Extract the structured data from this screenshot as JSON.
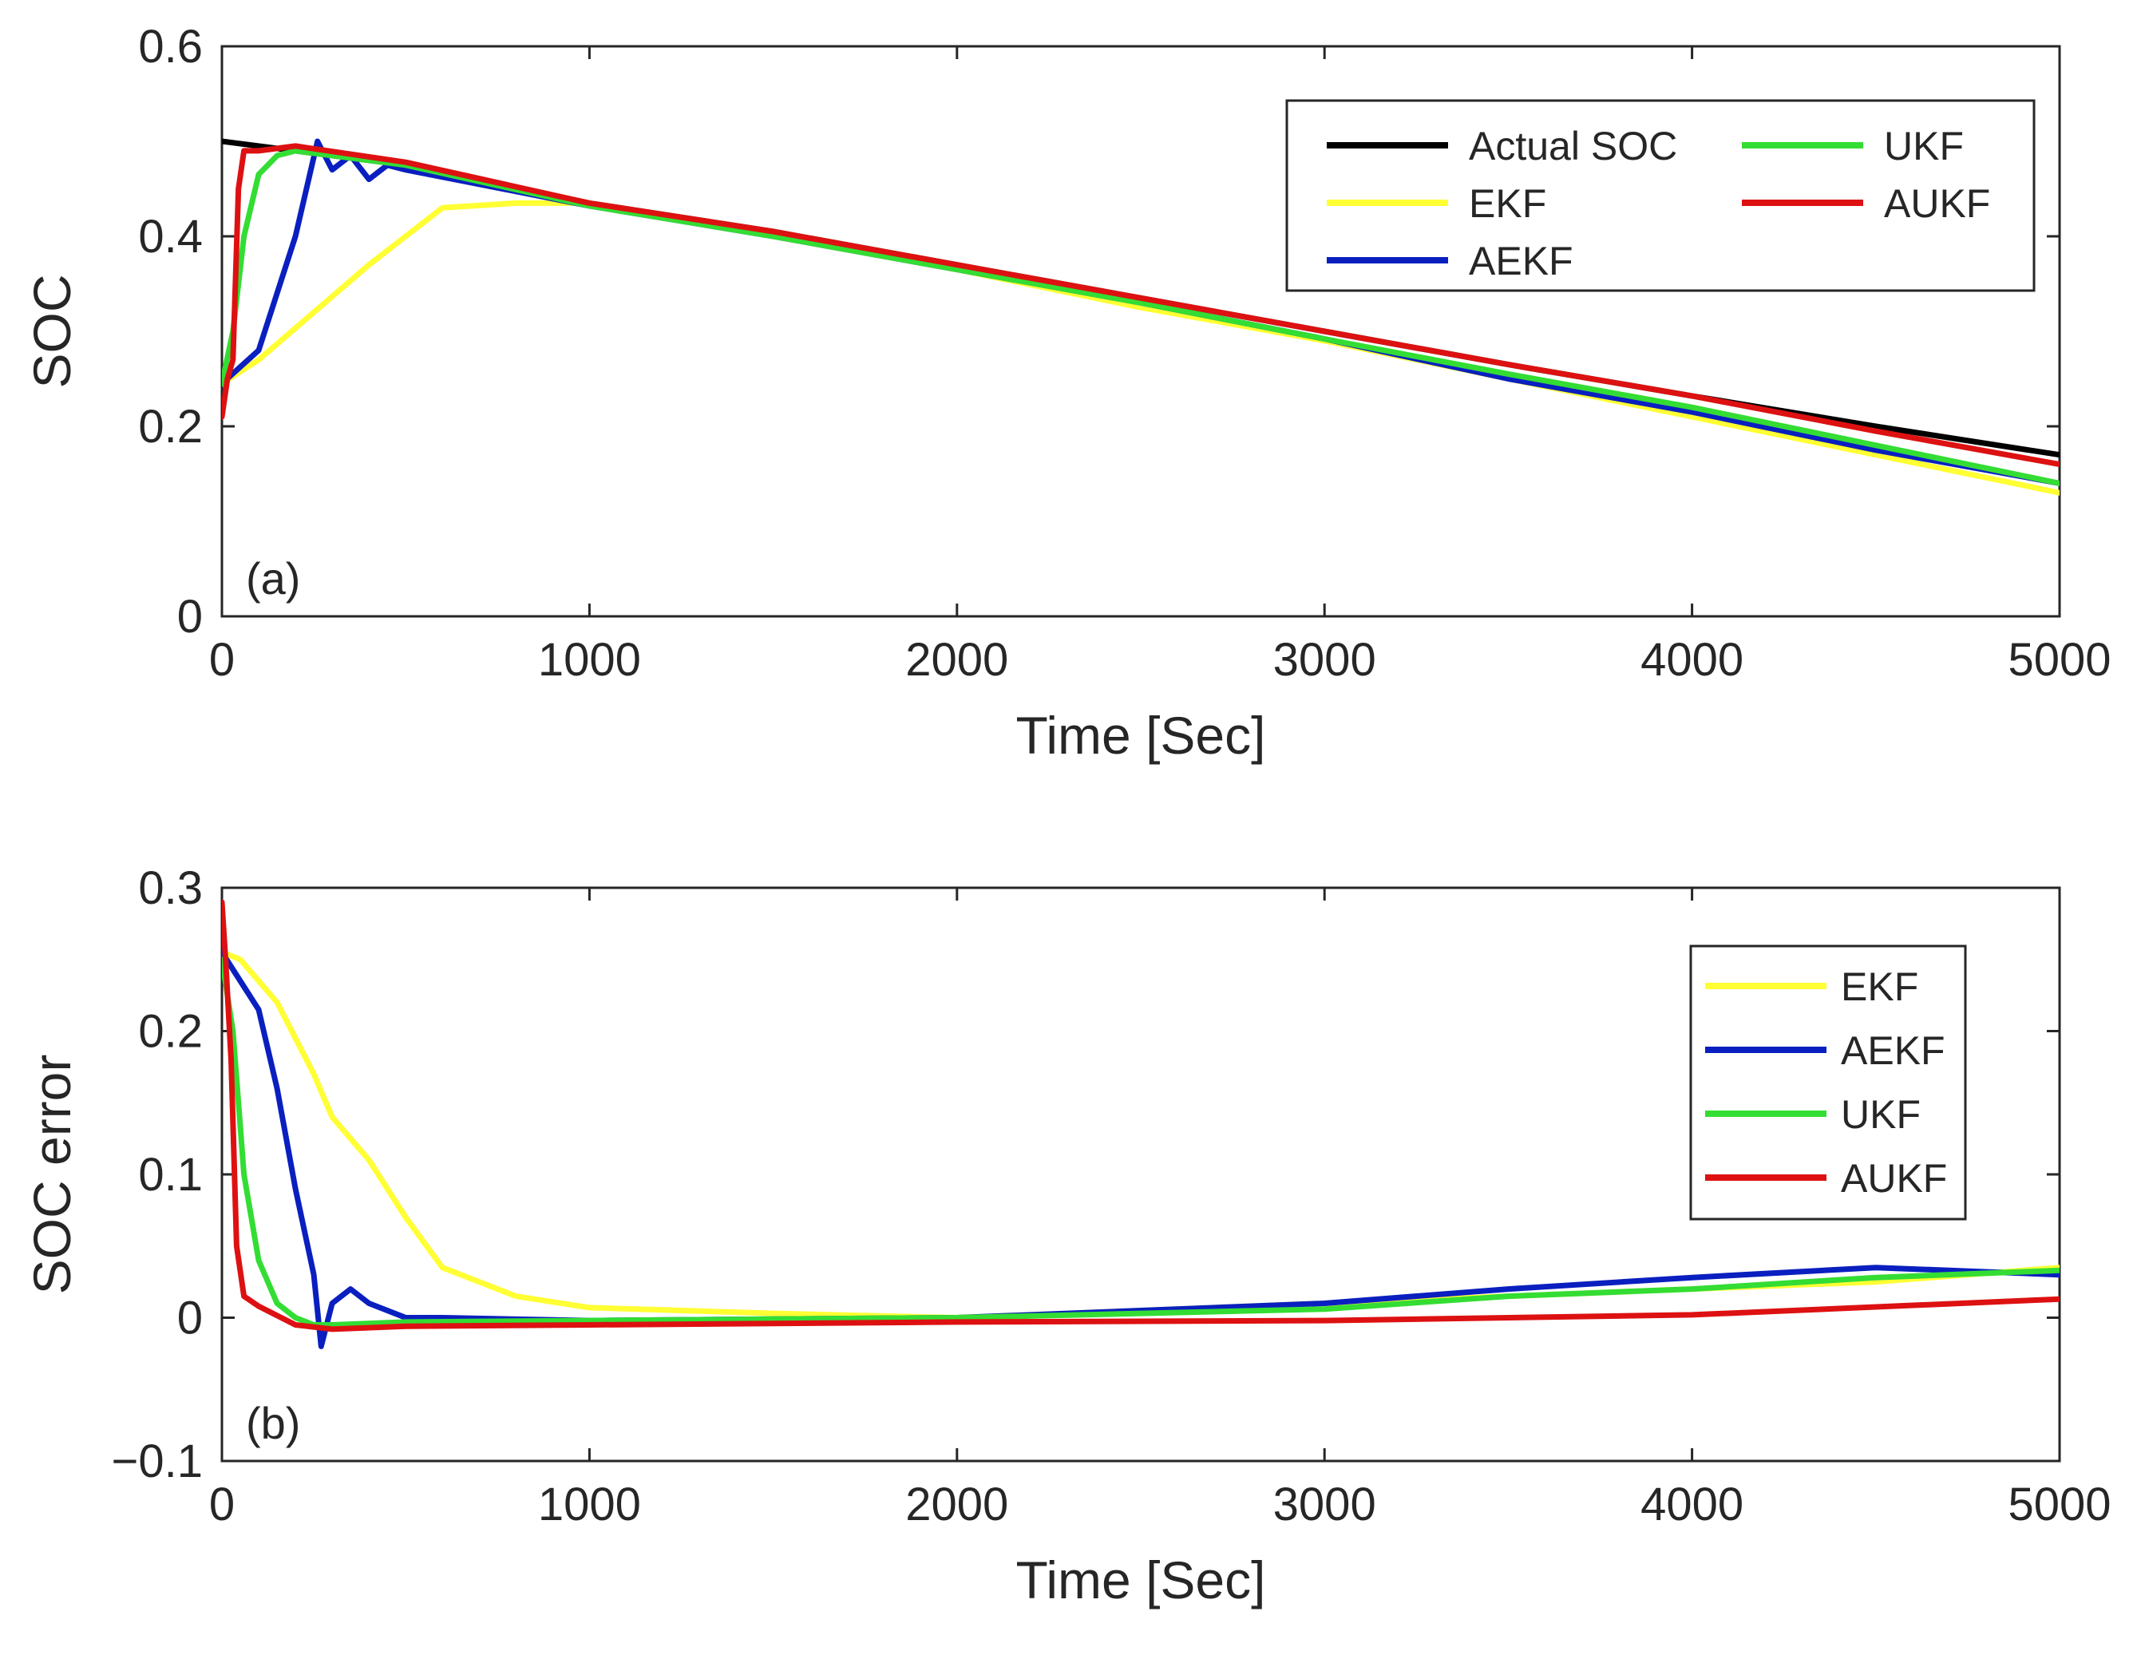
{
  "chart_data": [
    {
      "type": "line",
      "panel_label": "(a)",
      "xlabel": "Time [Sec]",
      "ylabel": "SOC",
      "xlim": [
        0,
        5000
      ],
      "ylim": [
        0,
        0.6
      ],
      "xticks": [
        0,
        1000,
        2000,
        3000,
        4000,
        5000
      ],
      "xtick_labels": [
        "0",
        "1000",
        "2000",
        "3000",
        "4000",
        "5000"
      ],
      "yticks": [
        0,
        0.2,
        0.4,
        0.6
      ],
      "ytick_labels": [
        "0",
        "0.2",
        "0.4",
        "0.6"
      ],
      "legend_position": "top-right",
      "legend_columns": 2,
      "series": [
        {
          "name": "Actual SOC",
          "color": "#000000",
          "x": [
            0,
            500,
            1000,
            1500,
            2000,
            2500,
            3000,
            3500,
            4000,
            4500,
            5000
          ],
          "y": [
            0.5,
            0.475,
            0.435,
            0.405,
            0.37,
            0.335,
            0.3,
            0.265,
            0.232,
            0.2,
            0.17
          ]
        },
        {
          "name": "EKF",
          "color": "#ffff33",
          "x": [
            0,
            100,
            250,
            400,
            600,
            800,
            1000,
            1500,
            2000,
            2500,
            3000,
            3500,
            4000,
            4500,
            5000
          ],
          "y": [
            0.245,
            0.27,
            0.32,
            0.37,
            0.43,
            0.435,
            0.435,
            0.4,
            0.365,
            0.325,
            0.29,
            0.25,
            0.21,
            0.17,
            0.13
          ]
        },
        {
          "name": "AEKF",
          "color": "#0a1fbf",
          "x": [
            0,
            100,
            200,
            260,
            300,
            350,
            400,
            450,
            500,
            1000,
            1500,
            2000,
            2500,
            3000,
            3500,
            4000,
            4500,
            5000
          ],
          "y": [
            0.245,
            0.28,
            0.4,
            0.5,
            0.47,
            0.485,
            0.46,
            0.475,
            0.47,
            0.432,
            0.4,
            0.365,
            0.33,
            0.292,
            0.25,
            0.215,
            0.175,
            0.14
          ]
        },
        {
          "name": "UKF",
          "color": "#33dd33",
          "x": [
            0,
            30,
            60,
            100,
            150,
            200,
            500,
            1000,
            1500,
            2000,
            2500,
            3000,
            3500,
            4000,
            4500,
            5000
          ],
          "y": [
            0.245,
            0.3,
            0.4,
            0.465,
            0.485,
            0.49,
            0.475,
            0.432,
            0.4,
            0.365,
            0.33,
            0.292,
            0.255,
            0.22,
            0.18,
            0.14
          ]
        },
        {
          "name": "AUKF",
          "color": "#dd1111",
          "x": [
            0,
            15,
            30,
            45,
            60,
            100,
            200,
            500,
            1000,
            1500,
            2000,
            2500,
            3000,
            3500,
            4000,
            4500,
            5000
          ],
          "y": [
            0.21,
            0.25,
            0.27,
            0.45,
            0.49,
            0.49,
            0.495,
            0.478,
            0.435,
            0.405,
            0.37,
            0.335,
            0.3,
            0.265,
            0.232,
            0.195,
            0.16
          ]
        }
      ]
    },
    {
      "type": "line",
      "panel_label": "(b)",
      "xlabel": "Time [Sec]",
      "ylabel": "SOC error",
      "xlim": [
        0,
        5000
      ],
      "ylim": [
        -0.1,
        0.3
      ],
      "xticks": [
        0,
        1000,
        2000,
        3000,
        4000,
        5000
      ],
      "xtick_labels": [
        "0",
        "1000",
        "2000",
        "3000",
        "4000",
        "5000"
      ],
      "yticks": [
        -0.1,
        0,
        0.1,
        0.2,
        0.3
      ],
      "ytick_labels": [
        "−0.1",
        "0",
        "0.1",
        "0.2",
        "0.3"
      ],
      "legend_position": "top-right",
      "legend_columns": 1,
      "series": [
        {
          "name": "EKF",
          "color": "#ffff33",
          "x": [
            0,
            50,
            150,
            250,
            300,
            400,
            500,
            600,
            700,
            800,
            1000,
            1500,
            2000,
            2500,
            3000,
            3500,
            4000,
            4500,
            5000
          ],
          "y": [
            0.255,
            0.25,
            0.22,
            0.17,
            0.14,
            0.11,
            0.07,
            0.035,
            0.025,
            0.015,
            0.007,
            0.003,
            0.0,
            0.005,
            0.01,
            0.015,
            0.02,
            0.025,
            0.035
          ]
        },
        {
          "name": "AEKF",
          "color": "#0a1fbf",
          "x": [
            0,
            50,
            100,
            150,
            200,
            250,
            270,
            300,
            350,
            400,
            450,
            500,
            600,
            1000,
            2000,
            3000,
            3500,
            4000,
            4500,
            5000
          ],
          "y": [
            0.255,
            0.235,
            0.215,
            0.16,
            0.09,
            0.03,
            -0.02,
            0.01,
            0.02,
            0.01,
            0.005,
            0.0,
            0.0,
            -0.002,
            0.0,
            0.01,
            0.02,
            0.028,
            0.035,
            0.03
          ]
        },
        {
          "name": "UKF",
          "color": "#33dd33",
          "x": [
            0,
            30,
            60,
            100,
            150,
            200,
            250,
            300,
            500,
            1000,
            2000,
            3000,
            3500,
            4000,
            4500,
            5000
          ],
          "y": [
            0.25,
            0.2,
            0.1,
            0.04,
            0.01,
            0.0,
            -0.005,
            -0.005,
            -0.003,
            -0.002,
            0.0,
            0.006,
            0.015,
            0.02,
            0.028,
            0.033
          ]
        },
        {
          "name": "AUKF",
          "color": "#dd1111",
          "x": [
            0,
            10,
            25,
            40,
            60,
            100,
            200,
            300,
            500,
            1000,
            2000,
            3000,
            4000,
            5000
          ],
          "y": [
            0.29,
            0.25,
            0.18,
            0.05,
            0.015,
            0.008,
            -0.005,
            -0.008,
            -0.006,
            -0.005,
            -0.003,
            -0.002,
            0.002,
            0.013
          ]
        }
      ]
    }
  ]
}
